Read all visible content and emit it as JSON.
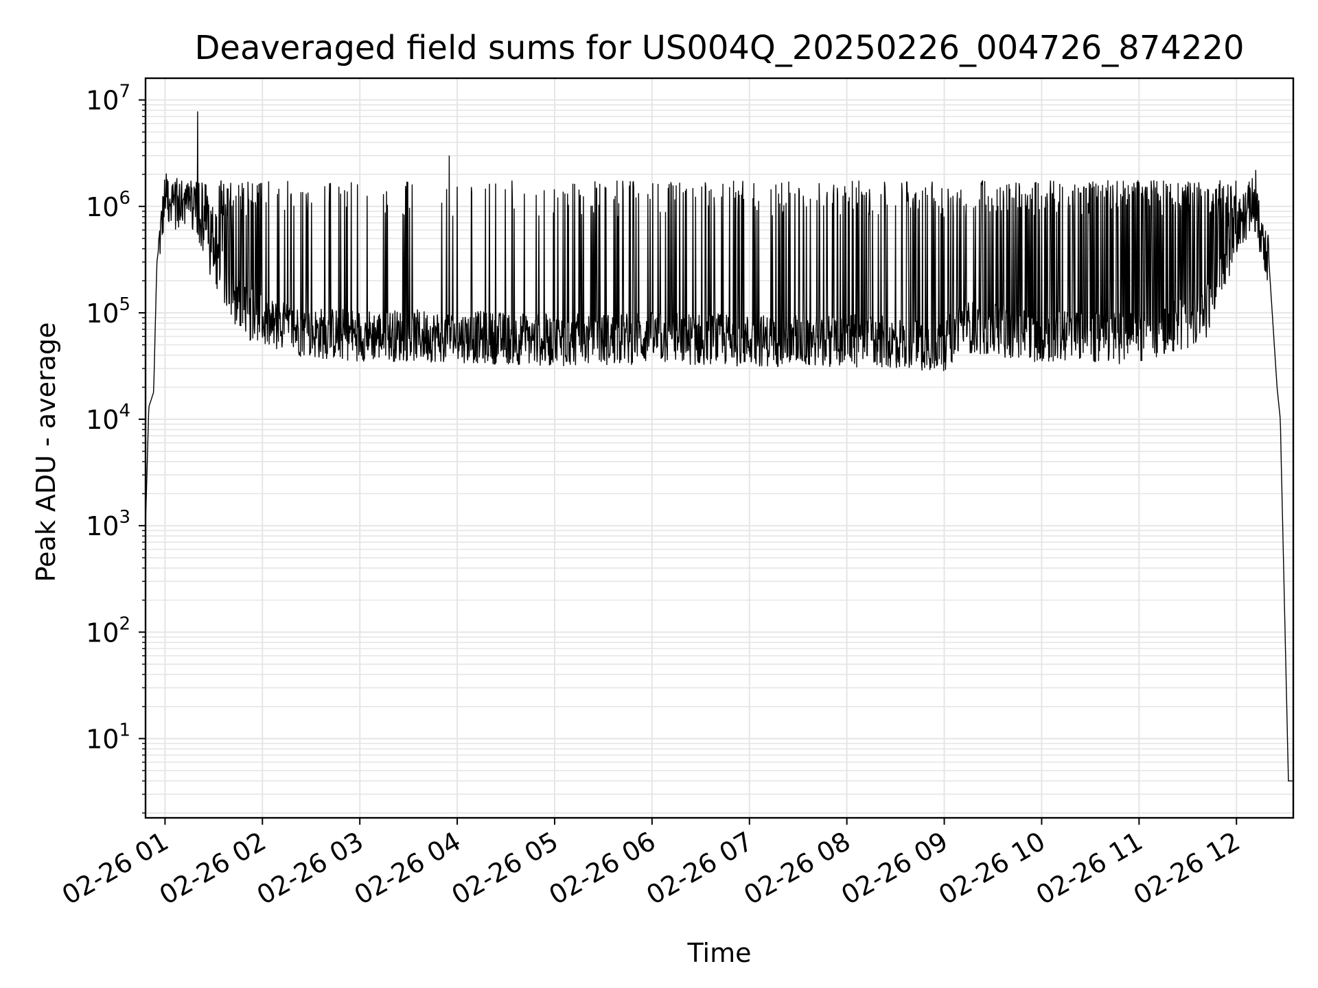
{
  "chart_data": {
    "type": "line",
    "title": "Deaveraged field sums for US004Q_20250226_004726_874220",
    "xlabel": "Time",
    "ylabel": "Peak ADU - average",
    "yscale": "log",
    "ylim": [
      1.8,
      16000000
    ],
    "xlim": [
      "2025-02-26 00:48",
      "2025-02-26 12:35"
    ],
    "grid": true,
    "line_color": "#000000",
    "grid_color": "#e5e5e5",
    "x_ticks": [
      {
        "t": "2025-02-26 01:00",
        "label": "02-26 01"
      },
      {
        "t": "2025-02-26 02:00",
        "label": "02-26 02"
      },
      {
        "t": "2025-02-26 03:00",
        "label": "02-26 03"
      },
      {
        "t": "2025-02-26 04:00",
        "label": "02-26 04"
      },
      {
        "t": "2025-02-26 05:00",
        "label": "02-26 05"
      },
      {
        "t": "2025-02-26 06:00",
        "label": "02-26 06"
      },
      {
        "t": "2025-02-26 07:00",
        "label": "02-26 07"
      },
      {
        "t": "2025-02-26 08:00",
        "label": "02-26 08"
      },
      {
        "t": "2025-02-26 09:00",
        "label": "02-26 09"
      },
      {
        "t": "2025-02-26 10:00",
        "label": "02-26 10"
      },
      {
        "t": "2025-02-26 11:00",
        "label": "02-26 11"
      },
      {
        "t": "2025-02-26 12:00",
        "label": "02-26 12"
      }
    ],
    "y_ticks": [
      {
        "value": 10,
        "base": "10",
        "exp": "1"
      },
      {
        "value": 100,
        "base": "10",
        "exp": "2"
      },
      {
        "value": 1000,
        "base": "10",
        "exp": "3"
      },
      {
        "value": 10000,
        "base": "10",
        "exp": "4"
      },
      {
        "value": 100000,
        "base": "10",
        "exp": "5"
      },
      {
        "value": 1000000,
        "base": "10",
        "exp": "6"
      },
      {
        "value": 10000000,
        "base": "10",
        "exp": "7"
      }
    ],
    "series": [
      {
        "baseline": [
          [
            "2025-02-26 00:48",
            1000
          ],
          [
            "2025-02-26 00:50",
            13000
          ],
          [
            "2025-02-26 00:53",
            18000
          ],
          [
            "2025-02-26 00:55",
            300000
          ],
          [
            "2025-02-26 01:00",
            1200000
          ],
          [
            "2025-02-26 01:15",
            900000
          ],
          [
            "2025-02-26 01:30",
            300000
          ],
          [
            "2025-02-26 01:45",
            120000
          ],
          [
            "2025-02-26 02:00",
            80000
          ],
          [
            "2025-02-26 02:30",
            65000
          ],
          [
            "2025-02-26 03:00",
            62000
          ],
          [
            "2025-02-26 04:00",
            60000
          ],
          [
            "2025-02-26 05:00",
            55000
          ],
          [
            "2025-02-26 06:00",
            58000
          ],
          [
            "2025-02-26 07:00",
            55000
          ],
          [
            "2025-02-26 08:00",
            55000
          ],
          [
            "2025-02-26 09:00",
            50000
          ],
          [
            "2025-02-26 09:12",
            75000
          ],
          [
            "2025-02-26 10:00",
            60000
          ],
          [
            "2025-02-26 11:00",
            58000
          ],
          [
            "2025-02-26 11:40",
            90000
          ],
          [
            "2025-02-26 12:00",
            600000
          ],
          [
            "2025-02-26 12:10",
            1100000
          ],
          [
            "2025-02-26 12:20",
            300000
          ],
          [
            "2025-02-26 12:25",
            20000
          ],
          [
            "2025-02-26 12:27",
            10000
          ],
          [
            "2025-02-26 12:32",
            4
          ],
          [
            "2025-02-26 12:35",
            4
          ]
        ],
        "noise_fraction": 0.25,
        "spike_density": {
          "2025-02-26 01": 0.9,
          "2025-02-26 02": 0.2,
          "2025-02-26 03": 0.15,
          "2025-02-26 04": 0.2,
          "2025-02-26 05": 0.3,
          "2025-02-26 06": 0.35,
          "2025-02-26 07": 0.4,
          "2025-02-26 08": 0.5,
          "2025-02-26 09": 0.55,
          "2025-02-26 10": 0.65,
          "2025-02-26 11": 0.8
        },
        "spike_peak": 1600000,
        "notable_peaks": [
          [
            "2025-02-26 01:20",
            7800000
          ],
          [
            "2025-02-26 03:55",
            3000000
          ],
          [
            "2025-02-26 12:12",
            2200000
          ]
        ]
      }
    ]
  }
}
